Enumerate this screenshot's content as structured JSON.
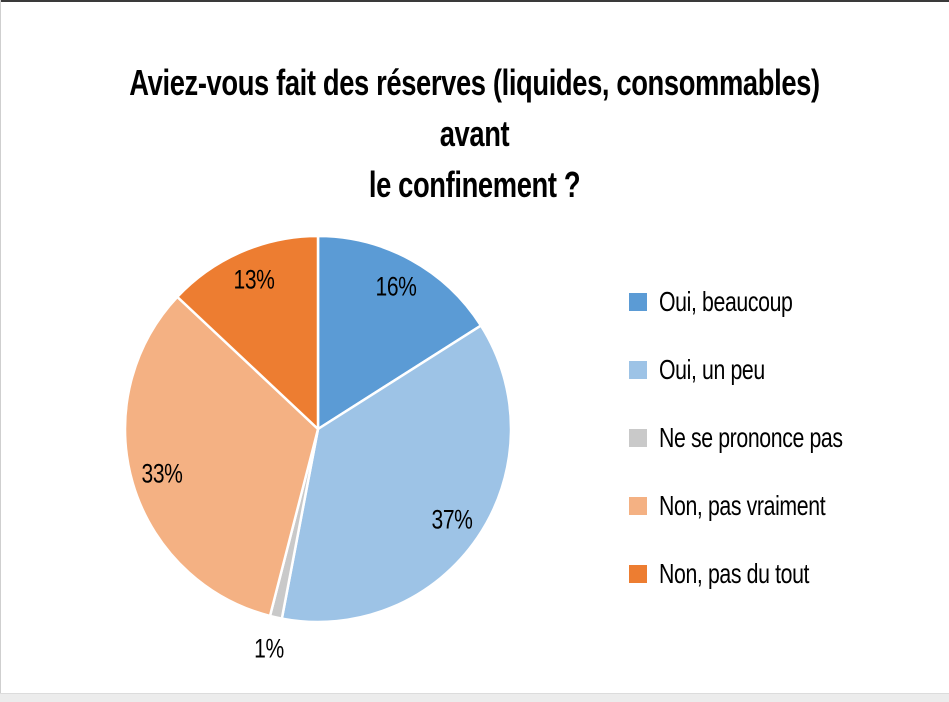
{
  "chart_data": {
    "type": "pie",
    "title": "Aviez-vous fait des réserves (liquides, consommables) avant le confinement ?",
    "title_line1": "Aviez-vous fait des réserves (liquides, consommables) avant",
    "title_line2": "le confinement ?",
    "start_angle_deg": 0,
    "direction": "clockwise",
    "legend_position": "right",
    "data_label_format": "percent",
    "background": "#FFFFFF",
    "slice_border_color": "#FFFFFF",
    "label_color": "#000000",
    "slices": [
      {
        "label": "Oui, beaucoup",
        "value_pct": 16,
        "data_label": "16%",
        "color": "#5B9BD5",
        "label_placement": "inside"
      },
      {
        "label": "Oui, un peu",
        "value_pct": 37,
        "data_label": "37%",
        "color": "#9DC3E6",
        "label_placement": "inside"
      },
      {
        "label": "Ne se prononce pas",
        "value_pct": 1,
        "data_label": "1%",
        "color": "#C9C9C9",
        "label_placement": "outside"
      },
      {
        "label": "Non, pas vraiment",
        "value_pct": 33,
        "data_label": "33%",
        "color": "#F4B183",
        "label_placement": "inside"
      },
      {
        "label": "Non, pas du tout",
        "value_pct": 13,
        "data_label": "13%",
        "color": "#ED7D31",
        "label_placement": "inside"
      }
    ]
  }
}
